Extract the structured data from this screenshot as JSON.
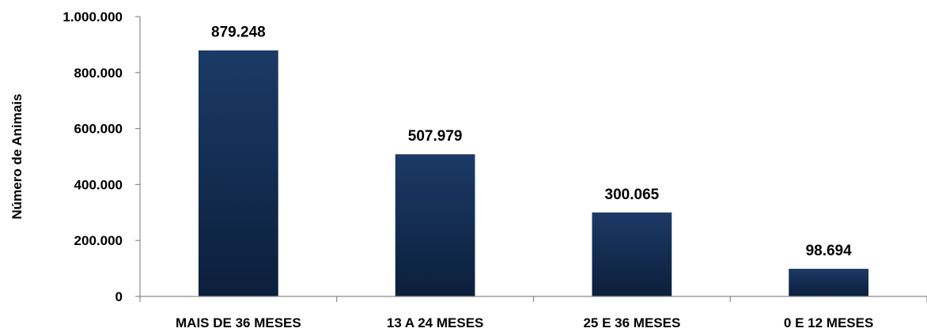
{
  "chart_data": {
    "type": "bar",
    "title": "",
    "xlabel": "",
    "ylabel": "Número de Animais",
    "categories": [
      "MAIS DE 36 MESES",
      "13 A 24 MESES",
      "25 E 36 MESES",
      "0 E 12 MESES"
    ],
    "values": [
      879248,
      507979,
      300065,
      98694
    ],
    "value_labels": [
      "879.248",
      "507.979",
      "300.065",
      "98.694"
    ],
    "ylim": [
      0,
      1000000
    ],
    "yticks": [
      0,
      200000,
      400000,
      600000,
      800000,
      1000000
    ],
    "ytick_labels": [
      "0",
      "200.000",
      "400.000",
      "600.000",
      "800.000",
      "1.000.000"
    ],
    "grid": false,
    "legend": "none",
    "colors": {
      "bar_top": "#1b3a66",
      "bar_bottom": "#0c1f3c"
    }
  }
}
